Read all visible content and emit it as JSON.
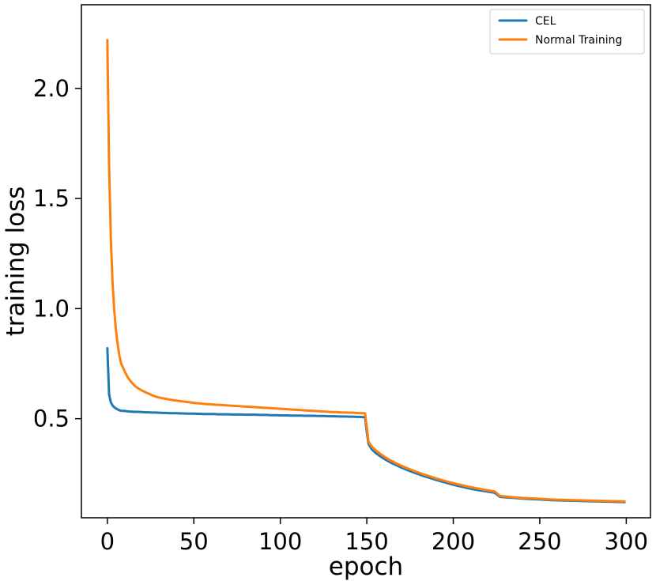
{
  "chart_data": {
    "type": "line",
    "xlabel": "epoch",
    "ylabel": "training loss",
    "xlim": [
      -15,
      314
    ],
    "ylim": [
      0.05,
      2.38
    ],
    "xticks": [
      0,
      50,
      100,
      150,
      200,
      250,
      300
    ],
    "xtick_labels": [
      "0",
      "50",
      "100",
      "150",
      "200",
      "250",
      "300"
    ],
    "yticks": [
      0.5,
      1.0,
      1.5,
      2.0
    ],
    "ytick_labels": [
      "0.5",
      "1.0",
      "1.5",
      "2.0"
    ],
    "grid": false,
    "legend": {
      "position": "top-right",
      "entries": [
        "CEL",
        "Normal Training"
      ]
    },
    "series": [
      {
        "name": "CEL",
        "color": "#1f77b4",
        "points": [
          [
            0,
            0.82
          ],
          [
            1,
            0.61
          ],
          [
            2,
            0.575
          ],
          [
            3,
            0.56
          ],
          [
            4,
            0.552
          ],
          [
            5,
            0.546
          ],
          [
            6,
            0.542
          ],
          [
            7,
            0.538
          ],
          [
            8,
            0.536
          ],
          [
            10,
            0.535
          ],
          [
            12,
            0.533
          ],
          [
            14,
            0.532
          ],
          [
            16,
            0.531
          ],
          [
            18,
            0.531
          ],
          [
            20,
            0.53
          ],
          [
            22,
            0.529
          ],
          [
            24,
            0.529
          ],
          [
            26,
            0.528
          ],
          [
            28,
            0.528
          ],
          [
            30,
            0.527
          ],
          [
            32,
            0.526
          ],
          [
            34,
            0.526
          ],
          [
            36,
            0.525
          ],
          [
            38,
            0.525
          ],
          [
            40,
            0.525
          ],
          [
            42,
            0.524
          ],
          [
            44,
            0.524
          ],
          [
            46,
            0.523
          ],
          [
            48,
            0.523
          ],
          [
            50,
            0.523
          ],
          [
            52,
            0.522
          ],
          [
            54,
            0.522
          ],
          [
            56,
            0.521
          ],
          [
            58,
            0.521
          ],
          [
            60,
            0.521
          ],
          [
            62,
            0.521
          ],
          [
            64,
            0.52
          ],
          [
            66,
            0.52
          ],
          [
            68,
            0.52
          ],
          [
            70,
            0.52
          ],
          [
            72,
            0.519
          ],
          [
            74,
            0.519
          ],
          [
            76,
            0.519
          ],
          [
            78,
            0.519
          ],
          [
            80,
            0.518
          ],
          [
            82,
            0.518
          ],
          [
            84,
            0.518
          ],
          [
            86,
            0.518
          ],
          [
            88,
            0.517
          ],
          [
            90,
            0.517
          ],
          [
            92,
            0.517
          ],
          [
            94,
            0.516
          ],
          [
            96,
            0.516
          ],
          [
            98,
            0.516
          ],
          [
            100,
            0.515
          ],
          [
            102,
            0.515
          ],
          [
            104,
            0.515
          ],
          [
            106,
            0.514
          ],
          [
            108,
            0.514
          ],
          [
            110,
            0.514
          ],
          [
            112,
            0.514
          ],
          [
            114,
            0.513
          ],
          [
            116,
            0.513
          ],
          [
            118,
            0.513
          ],
          [
            120,
            0.513
          ],
          [
            122,
            0.512
          ],
          [
            124,
            0.512
          ],
          [
            126,
            0.512
          ],
          [
            128,
            0.511
          ],
          [
            130,
            0.511
          ],
          [
            132,
            0.511
          ],
          [
            134,
            0.51
          ],
          [
            136,
            0.51
          ],
          [
            138,
            0.51
          ],
          [
            140,
            0.509
          ],
          [
            142,
            0.509
          ],
          [
            144,
            0.508
          ],
          [
            146,
            0.508
          ],
          [
            148,
            0.507
          ],
          [
            149,
            0.507
          ],
          [
            150,
            0.44
          ],
          [
            151,
            0.385
          ],
          [
            153,
            0.36
          ],
          [
            155,
            0.345
          ],
          [
            158,
            0.328
          ],
          [
            161,
            0.313
          ],
          [
            164,
            0.3
          ],
          [
            167,
            0.289
          ],
          [
            170,
            0.278
          ],
          [
            174,
            0.265
          ],
          [
            178,
            0.253
          ],
          [
            182,
            0.242
          ],
          [
            186,
            0.232
          ],
          [
            190,
            0.222
          ],
          [
            194,
            0.213
          ],
          [
            198,
            0.204
          ],
          [
            202,
            0.196
          ],
          [
            206,
            0.189
          ],
          [
            210,
            0.182
          ],
          [
            214,
            0.176
          ],
          [
            218,
            0.171
          ],
          [
            222,
            0.166
          ],
          [
            224,
            0.163
          ],
          [
            225,
            0.157
          ],
          [
            227,
            0.145
          ],
          [
            230,
            0.143
          ],
          [
            235,
            0.14
          ],
          [
            240,
            0.137
          ],
          [
            245,
            0.135
          ],
          [
            250,
            0.133
          ],
          [
            255,
            0.131
          ],
          [
            260,
            0.129
          ],
          [
            265,
            0.128
          ],
          [
            270,
            0.127
          ],
          [
            275,
            0.126
          ],
          [
            280,
            0.125
          ],
          [
            285,
            0.124
          ],
          [
            290,
            0.123
          ],
          [
            295,
            0.122
          ],
          [
            299,
            0.121
          ]
        ]
      },
      {
        "name": "Normal Training",
        "color": "#ff7f0e",
        "points": [
          [
            0,
            2.22
          ],
          [
            1,
            1.65
          ],
          [
            2,
            1.32
          ],
          [
            3,
            1.12
          ],
          [
            4,
            0.99
          ],
          [
            5,
            0.9
          ],
          [
            6,
            0.835
          ],
          [
            7,
            0.785
          ],
          [
            8,
            0.75
          ],
          [
            10,
            0.715
          ],
          [
            12,
            0.685
          ],
          [
            14,
            0.665
          ],
          [
            16,
            0.648
          ],
          [
            18,
            0.637
          ],
          [
            20,
            0.628
          ],
          [
            22,
            0.62
          ],
          [
            24,
            0.613
          ],
          [
            26,
            0.606
          ],
          [
            28,
            0.6
          ],
          [
            30,
            0.596
          ],
          [
            32,
            0.593
          ],
          [
            34,
            0.59
          ],
          [
            36,
            0.587
          ],
          [
            38,
            0.584
          ],
          [
            40,
            0.582
          ],
          [
            42,
            0.58
          ],
          [
            44,
            0.578
          ],
          [
            46,
            0.576
          ],
          [
            48,
            0.574
          ],
          [
            50,
            0.572
          ],
          [
            52,
            0.57
          ],
          [
            54,
            0.569
          ],
          [
            56,
            0.567
          ],
          [
            58,
            0.566
          ],
          [
            60,
            0.565
          ],
          [
            62,
            0.564
          ],
          [
            64,
            0.563
          ],
          [
            66,
            0.562
          ],
          [
            68,
            0.561
          ],
          [
            70,
            0.56
          ],
          [
            72,
            0.559
          ],
          [
            74,
            0.558
          ],
          [
            76,
            0.557
          ],
          [
            78,
            0.556
          ],
          [
            80,
            0.555
          ],
          [
            82,
            0.554
          ],
          [
            84,
            0.553
          ],
          [
            86,
            0.552
          ],
          [
            88,
            0.551
          ],
          [
            90,
            0.55
          ],
          [
            92,
            0.549
          ],
          [
            94,
            0.548
          ],
          [
            96,
            0.547
          ],
          [
            98,
            0.546
          ],
          [
            100,
            0.545
          ],
          [
            102,
            0.544
          ],
          [
            104,
            0.543
          ],
          [
            106,
            0.542
          ],
          [
            108,
            0.541
          ],
          [
            110,
            0.54
          ],
          [
            112,
            0.539
          ],
          [
            114,
            0.538
          ],
          [
            116,
            0.537
          ],
          [
            118,
            0.536
          ],
          [
            120,
            0.535
          ],
          [
            122,
            0.534
          ],
          [
            124,
            0.533
          ],
          [
            126,
            0.532
          ],
          [
            128,
            0.531
          ],
          [
            130,
            0.53
          ],
          [
            132,
            0.53
          ],
          [
            134,
            0.529
          ],
          [
            136,
            0.528
          ],
          [
            138,
            0.528
          ],
          [
            140,
            0.527
          ],
          [
            142,
            0.527
          ],
          [
            144,
            0.526
          ],
          [
            146,
            0.525
          ],
          [
            148,
            0.525
          ],
          [
            149,
            0.525
          ],
          [
            150,
            0.46
          ],
          [
            151,
            0.395
          ],
          [
            153,
            0.372
          ],
          [
            155,
            0.357
          ],
          [
            158,
            0.339
          ],
          [
            161,
            0.323
          ],
          [
            164,
            0.309
          ],
          [
            167,
            0.297
          ],
          [
            170,
            0.286
          ],
          [
            174,
            0.273
          ],
          [
            178,
            0.261
          ],
          [
            182,
            0.249
          ],
          [
            186,
            0.239
          ],
          [
            190,
            0.229
          ],
          [
            194,
            0.22
          ],
          [
            198,
            0.211
          ],
          [
            202,
            0.203
          ],
          [
            206,
            0.196
          ],
          [
            210,
            0.189
          ],
          [
            214,
            0.183
          ],
          [
            218,
            0.177
          ],
          [
            222,
            0.172
          ],
          [
            224,
            0.169
          ],
          [
            225,
            0.162
          ],
          [
            227,
            0.149
          ],
          [
            230,
            0.147
          ],
          [
            235,
            0.143
          ],
          [
            240,
            0.14
          ],
          [
            245,
            0.138
          ],
          [
            250,
            0.136
          ],
          [
            255,
            0.134
          ],
          [
            260,
            0.132
          ],
          [
            265,
            0.131
          ],
          [
            270,
            0.13
          ],
          [
            275,
            0.129
          ],
          [
            280,
            0.128
          ],
          [
            285,
            0.127
          ],
          [
            290,
            0.126
          ],
          [
            295,
            0.125
          ],
          [
            299,
            0.124
          ]
        ]
      }
    ]
  }
}
